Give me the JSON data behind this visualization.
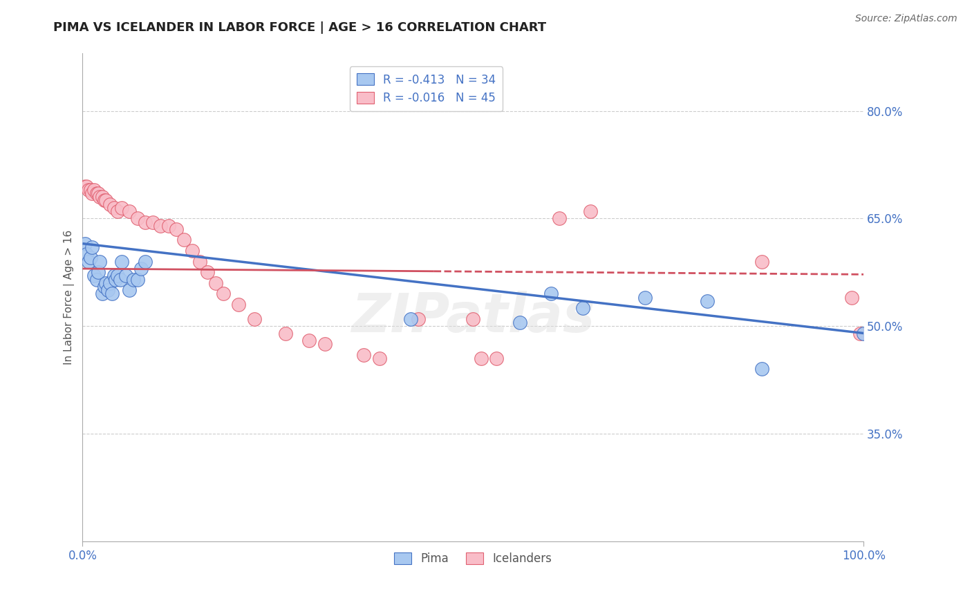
{
  "title": "PIMA VS ICELANDER IN LABOR FORCE | AGE > 16 CORRELATION CHART",
  "source": "Source: ZipAtlas.com",
  "ylabel_label": "In Labor Force | Age > 16",
  "x_ticklabels": [
    "0.0%",
    "100.0%"
  ],
  "y_ticklabels_right": [
    "35.0%",
    "50.0%",
    "65.0%",
    "80.0%"
  ],
  "pima_color": "#A8C8F0",
  "pima_edge_color": "#4472C4",
  "ice_color": "#F9BDC8",
  "ice_edge_color": "#E06070",
  "pima_line_color": "#4472C4",
  "ice_line_color": "#D05060",
  "background_color": "#FFFFFF",
  "grid_color": "#CCCCCC",
  "watermark": "ZIPatlas",
  "pima_x": [
    0.003,
    0.005,
    0.008,
    0.01,
    0.012,
    0.015,
    0.018,
    0.02,
    0.022,
    0.025,
    0.028,
    0.03,
    0.032,
    0.035,
    0.038,
    0.04,
    0.042,
    0.045,
    0.048,
    0.05,
    0.055,
    0.06,
    0.065,
    0.07,
    0.075,
    0.08,
    0.42,
    0.56,
    0.6,
    0.64,
    0.72,
    0.8,
    0.87,
    1.0
  ],
  "pima_y": [
    0.615,
    0.6,
    0.59,
    0.595,
    0.61,
    0.57,
    0.565,
    0.575,
    0.59,
    0.545,
    0.555,
    0.56,
    0.55,
    0.56,
    0.545,
    0.57,
    0.565,
    0.57,
    0.565,
    0.59,
    0.57,
    0.55,
    0.565,
    0.565,
    0.58,
    0.59,
    0.51,
    0.505,
    0.545,
    0.525,
    0.54,
    0.535,
    0.44,
    0.49
  ],
  "ice_x": [
    0.003,
    0.005,
    0.008,
    0.01,
    0.012,
    0.015,
    0.018,
    0.02,
    0.022,
    0.025,
    0.028,
    0.03,
    0.035,
    0.04,
    0.045,
    0.05,
    0.06,
    0.07,
    0.08,
    0.09,
    0.1,
    0.11,
    0.12,
    0.13,
    0.14,
    0.15,
    0.16,
    0.17,
    0.18,
    0.2,
    0.22,
    0.26,
    0.29,
    0.31,
    0.36,
    0.38,
    0.43,
    0.5,
    0.51,
    0.53,
    0.61,
    0.65,
    0.87,
    0.985,
    0.995
  ],
  "ice_y": [
    0.695,
    0.695,
    0.69,
    0.69,
    0.685,
    0.69,
    0.685,
    0.685,
    0.68,
    0.68,
    0.675,
    0.675,
    0.67,
    0.665,
    0.66,
    0.665,
    0.66,
    0.65,
    0.645,
    0.645,
    0.64,
    0.64,
    0.635,
    0.62,
    0.605,
    0.59,
    0.575,
    0.56,
    0.545,
    0.53,
    0.51,
    0.49,
    0.48,
    0.475,
    0.46,
    0.455,
    0.51,
    0.51,
    0.455,
    0.455,
    0.65,
    0.66,
    0.59,
    0.54,
    0.49
  ],
  "xlim": [
    0.0,
    1.0
  ],
  "ylim": [
    0.2,
    0.88
  ],
  "yticks": [
    0.35,
    0.5,
    0.65,
    0.8
  ],
  "xticks": [
    0.0,
    1.0
  ],
  "title_fontsize": 13,
  "axis_label_fontsize": 11,
  "tick_fontsize": 12,
  "legend_fontsize": 12
}
